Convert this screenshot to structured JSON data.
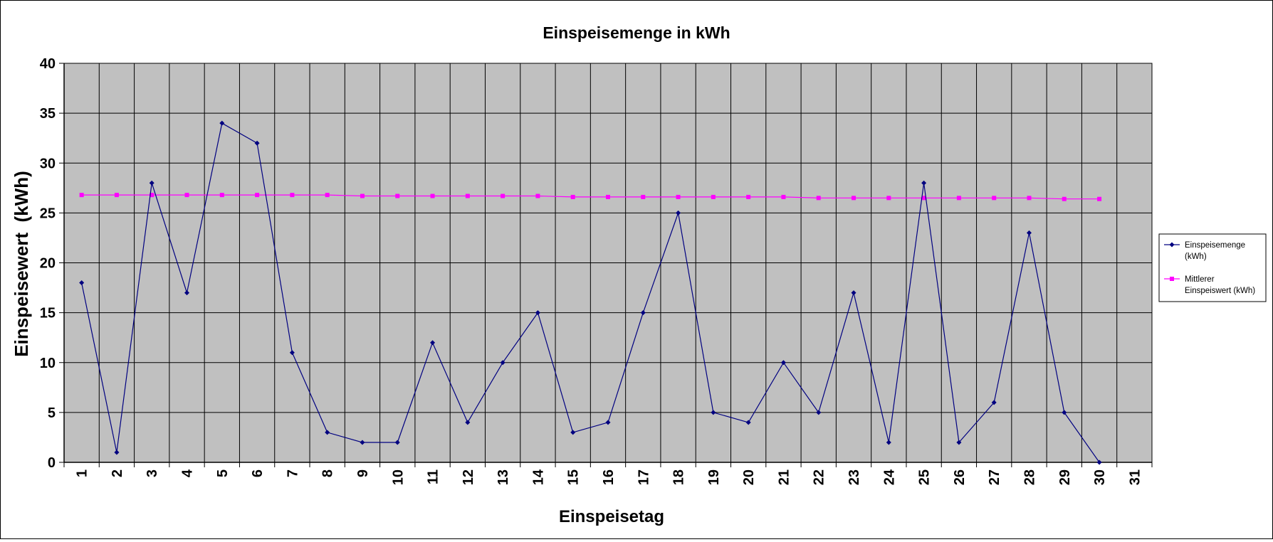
{
  "chart_data": {
    "type": "line",
    "title": "Einspeisemenge in kWh",
    "xlabel": "Einspeisetag",
    "ylabel": "Einspeisewert  (kWh)",
    "categories": [
      "1",
      "2",
      "3",
      "4",
      "5",
      "6",
      "7",
      "8",
      "9",
      "10",
      "11",
      "12",
      "13",
      "14",
      "15",
      "16",
      "17",
      "18",
      "19",
      "20",
      "21",
      "22",
      "23",
      "24",
      "25",
      "26",
      "27",
      "28",
      "29",
      "30",
      "31"
    ],
    "ylim": [
      0,
      40
    ],
    "yticks": [
      0,
      5,
      10,
      15,
      20,
      25,
      30,
      35,
      40
    ],
    "grid": true,
    "legend_position": "right",
    "series": [
      {
        "name": "Einspeisemenge (kWh)",
        "legend_lines": [
          "Einspeisemenge",
          "(kWh)"
        ],
        "color": "#000080",
        "marker": "diamond",
        "values": [
          18,
          1,
          28,
          17,
          34,
          32,
          11,
          3,
          2,
          2,
          12,
          4,
          10,
          15,
          3,
          4,
          15,
          25,
          5,
          4,
          10,
          5,
          17,
          2,
          28,
          2,
          6,
          23,
          5,
          0,
          null
        ]
      },
      {
        "name": "Mittlerer Einspeiswert (kWh)",
        "legend_lines": [
          "Mittlerer",
          "Einspeiswert (kWh)"
        ],
        "color": "#ff00ff",
        "marker": "square",
        "values": [
          26.8,
          26.8,
          26.8,
          26.8,
          26.8,
          26.8,
          26.8,
          26.8,
          26.7,
          26.7,
          26.7,
          26.7,
          26.7,
          26.7,
          26.6,
          26.6,
          26.6,
          26.6,
          26.6,
          26.6,
          26.6,
          26.5,
          26.5,
          26.5,
          26.5,
          26.5,
          26.5,
          26.5,
          26.4,
          26.4,
          null
        ]
      }
    ],
    "colors": {
      "plot_background": "#c0c0c0",
      "gridline": "#000000",
      "axis": "#000000"
    }
  }
}
